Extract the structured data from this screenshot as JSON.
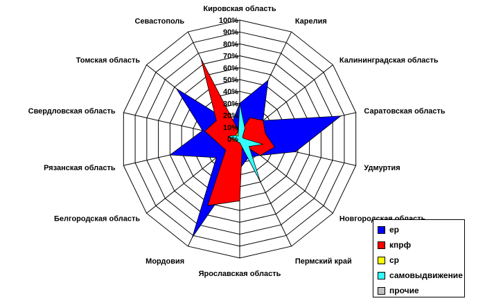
{
  "chart_data": {
    "type": "radar",
    "categories": [
      "Кировская область",
      "Карелия",
      "Калининградская область",
      "Саратовская область",
      "Удмуртия",
      "Новгородская область",
      "Пермский край",
      "Ярославская область",
      "Мордовия",
      "Белгородская область",
      "Рязанская область",
      "Свердловская область",
      "Томская область",
      "Севастополь"
    ],
    "ticks": [
      "0%",
      "10%",
      "20%",
      "30%",
      "40%",
      "50%",
      "60%",
      "70%",
      "80%",
      "90%",
      "100%"
    ],
    "ylim": [
      0,
      100
    ],
    "grid": true,
    "legend_position": "bottom-right",
    "series": [
      {
        "name": "ер",
        "color": "#0000ff",
        "values": [
          30,
          55,
          25,
          87,
          48,
          22,
          17,
          25,
          92,
          25,
          60,
          32,
          68,
          15
        ]
      },
      {
        "name": "кпрф",
        "color": "#ff0000",
        "values": [
          5,
          20,
          25,
          22,
          30,
          22,
          5,
          52,
          62,
          15,
          18,
          30,
          25,
          75
        ]
      },
      {
        "name": "ср",
        "color": "#ffff00",
        "values": [
          13,
          3,
          3,
          3,
          3,
          3,
          3,
          3,
          3,
          3,
          5,
          8,
          5,
          5
        ]
      },
      {
        "name": "самовыдвижение",
        "color": "#33ffff",
        "values": [
          30,
          10,
          3,
          3,
          20,
          10,
          40,
          3,
          3,
          3,
          3,
          10,
          5,
          3
        ]
      },
      {
        "name": "прочие",
        "color": "#c0c0c0",
        "values": [
          0,
          0,
          0,
          0,
          0,
          0,
          0,
          0,
          0,
          0,
          0,
          0,
          0,
          0
        ]
      }
    ]
  }
}
